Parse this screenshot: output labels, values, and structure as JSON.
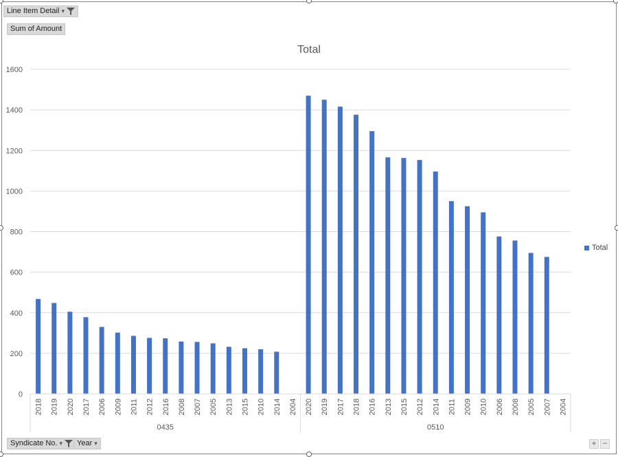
{
  "filters": {
    "line_item_detail": "Line Item Detail",
    "sum_of_amount": "Sum of Amount",
    "syndicate_no": "Syndicate No.",
    "year": "Year"
  },
  "zoom": {
    "plus": "+",
    "minus": "−"
  },
  "chart_data": {
    "type": "bar",
    "title": "Total",
    "xlabel": "",
    "ylabel": "",
    "ylim": [
      0,
      1600
    ],
    "yticks": [
      0,
      200,
      400,
      600,
      800,
      1000,
      1200,
      1400,
      1600
    ],
    "grid": true,
    "legend_position": "right",
    "groups": [
      {
        "name": "0435",
        "categories": [
          "2018",
          "2019",
          "2020",
          "2017",
          "2006",
          "2009",
          "2011",
          "2012",
          "2016",
          "2008",
          "2007",
          "2005",
          "2013",
          "2015",
          "2010",
          "2014",
          "2004"
        ],
        "values": [
          468,
          448,
          405,
          378,
          330,
          302,
          286,
          276,
          274,
          258,
          256,
          249,
          232,
          225,
          220,
          208,
          0
        ]
      },
      {
        "name": "0510",
        "categories": [
          "2020",
          "2019",
          "2017",
          "2018",
          "2016",
          "2013",
          "2015",
          "2012",
          "2014",
          "2011",
          "2009",
          "2010",
          "2006",
          "2008",
          "2005",
          "2007",
          "2004"
        ],
        "values": [
          1470,
          1450,
          1416,
          1376,
          1295,
          1166,
          1163,
          1153,
          1096,
          950,
          925,
          895,
          776,
          756,
          695,
          675,
          0
        ]
      }
    ],
    "series": [
      {
        "name": "Total",
        "color": "#4472c4"
      }
    ]
  }
}
